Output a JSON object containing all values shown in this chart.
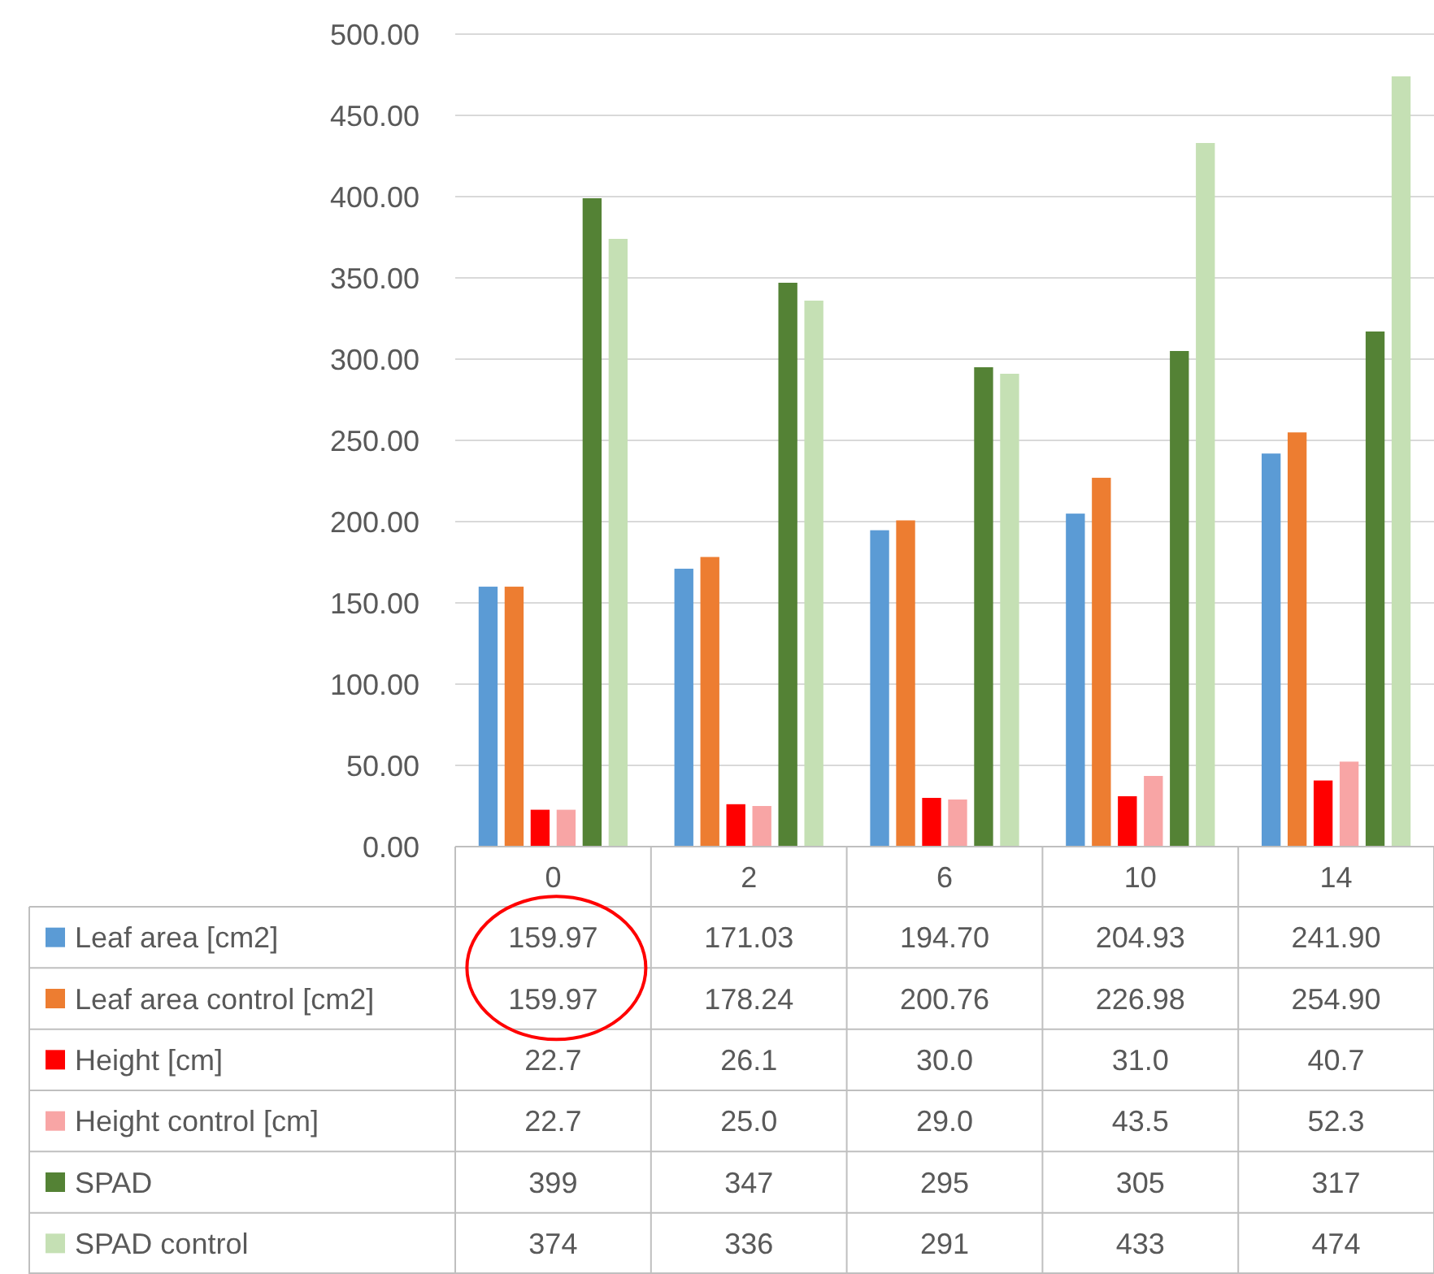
{
  "chart_data": {
    "type": "bar",
    "categories": [
      "0",
      "2",
      "6",
      "10",
      "14"
    ],
    "series": [
      {
        "name": "Leaf area [cm2]",
        "color": "#5b9bd5",
        "values": [
          159.97,
          171.03,
          194.7,
          204.93,
          241.9
        ],
        "value_labels": [
          "159.97",
          "171.03",
          "194.70",
          "204.93",
          "241.90"
        ]
      },
      {
        "name": "Leaf area control [cm2]",
        "color": "#ed7d31",
        "values": [
          159.97,
          178.24,
          200.76,
          226.98,
          254.9
        ],
        "value_labels": [
          "159.97",
          "178.24",
          "200.76",
          "226.98",
          "254.90"
        ]
      },
      {
        "name": "Height [cm]",
        "color": "#ff0000",
        "values": [
          22.7,
          26.1,
          30.0,
          31.0,
          40.7
        ],
        "value_labels": [
          "22.7",
          "26.1",
          "30.0",
          "31.0",
          "40.7"
        ]
      },
      {
        "name": "Height control [cm]",
        "color": "#f8a5a5",
        "values": [
          22.7,
          25.0,
          29.0,
          43.5,
          52.3
        ],
        "value_labels": [
          "22.7",
          "25.0",
          "29.0",
          "43.5",
          "52.3"
        ]
      },
      {
        "name": "SPAD",
        "color": "#548235",
        "values": [
          399,
          347,
          295,
          305,
          317
        ],
        "value_labels": [
          "399",
          "347",
          "295",
          "305",
          "317"
        ]
      },
      {
        "name": "SPAD control",
        "color": "#c5e0b4",
        "values": [
          374,
          336,
          291,
          433,
          474
        ],
        "value_labels": [
          "374",
          "336",
          "291",
          "433",
          "474"
        ]
      }
    ],
    "ylim": [
      0,
      500
    ],
    "yticks": [
      {
        "value": 0,
        "label": "0.00"
      },
      {
        "value": 50,
        "label": "50.00"
      },
      {
        "value": 100,
        "label": "100.00"
      },
      {
        "value": 150,
        "label": "150.00"
      },
      {
        "value": 200,
        "label": "200.00"
      },
      {
        "value": 250,
        "label": "250.00"
      },
      {
        "value": 300,
        "label": "300.00"
      },
      {
        "value": 350,
        "label": "350.00"
      },
      {
        "value": 400,
        "label": "400.00"
      },
      {
        "value": 450,
        "label": "450.00"
      },
      {
        "value": 500,
        "label": "500.00"
      }
    ],
    "grid": "y",
    "legend": "bottom"
  }
}
